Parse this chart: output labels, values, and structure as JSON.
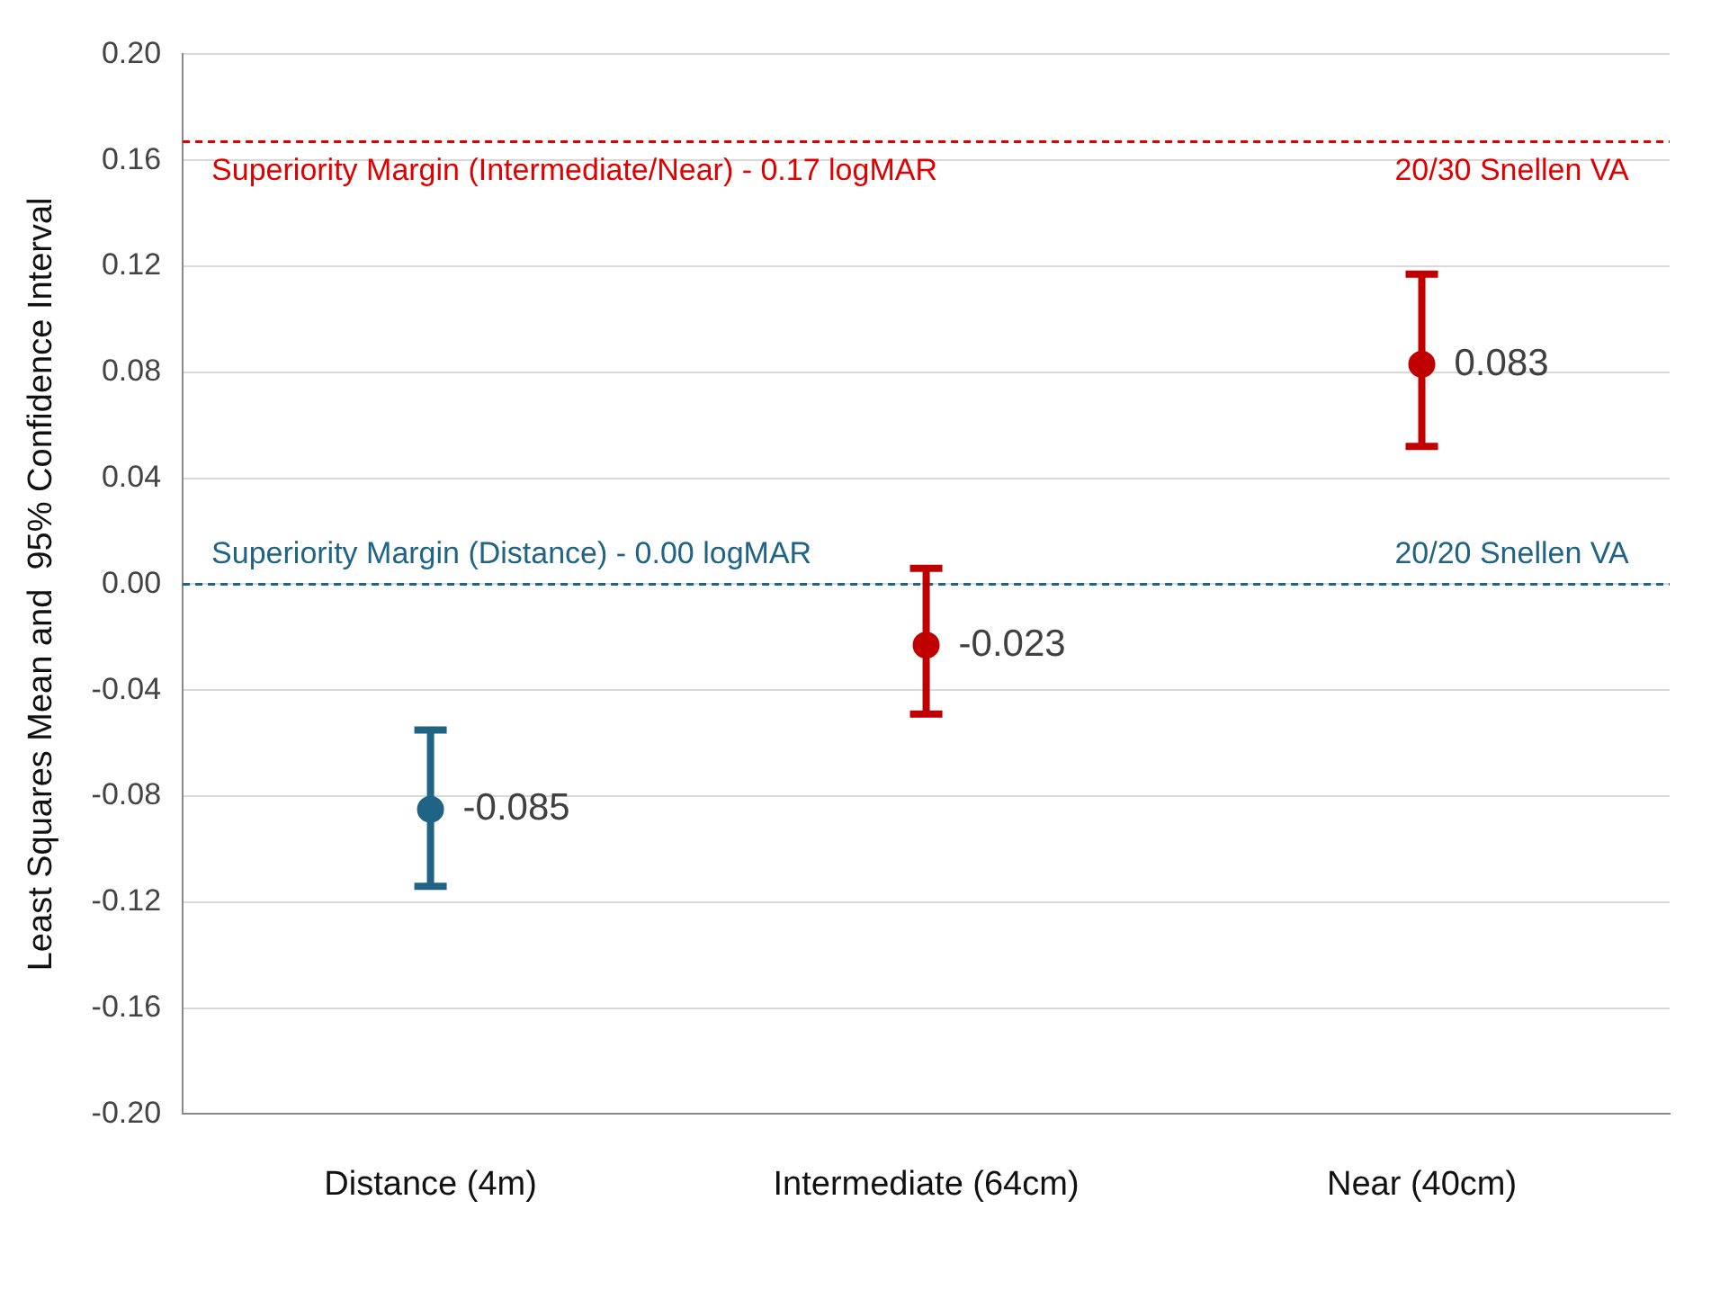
{
  "chart_data": {
    "type": "scatter",
    "ylabel": "Least Squares Mean and  95% Confidence Interval",
    "categories": [
      "Distance (4m)",
      "Intermediate (64cm)",
      "Near (40cm)"
    ],
    "values": [
      -0.085,
      -0.023,
      0.083
    ],
    "colors": [
      "#1f6484",
      "#c00000",
      "#c00000"
    ],
    "errors": [
      [
        -0.114,
        -0.055
      ],
      [
        -0.049,
        0.006
      ],
      [
        0.052,
        0.117
      ]
    ],
    "data_labels": true,
    "marker": "circle",
    "grid": "y",
    "legend": false,
    "ylim": [
      -0.2,
      0.2
    ],
    "yticks": [
      {
        "value": -0.2,
        "label": "-0.20"
      },
      {
        "value": -0.16,
        "label": "-0.16"
      },
      {
        "value": -0.12,
        "label": "-0.12"
      },
      {
        "value": -0.08,
        "label": "-0.08"
      },
      {
        "value": -0.04,
        "label": "-0.04"
      },
      {
        "value": 0,
        "label": "0.00"
      },
      {
        "value": 0.04,
        "label": "0.04"
      },
      {
        "value": 0.08,
        "label": "0.08"
      },
      {
        "value": 0.12,
        "label": "0.12"
      },
      {
        "value": 0.16,
        "label": "0.16"
      },
      {
        "value": 0.2,
        "label": "0.20"
      }
    ],
    "ref_lines": [
      {
        "axis": "y",
        "value": 0.167,
        "label": "Superiority Margin (Intermediate/Near) - 0.17 logMAR",
        "color": "#e00000",
        "line_style": "dashed"
      },
      {
        "axis": "y",
        "value": 0,
        "label": "Superiority Margin (Distance) - 0.00 logMAR",
        "color": "#1f6484",
        "line_style": "dashed"
      }
    ],
    "annotations": [
      {
        "text": "20/30 Snellen VA",
        "x": "Near (40cm)",
        "y": 0.167
      },
      {
        "text": "20/20 Snellen VA",
        "x": "Near (40cm)",
        "y": 0
      }
    ]
  }
}
